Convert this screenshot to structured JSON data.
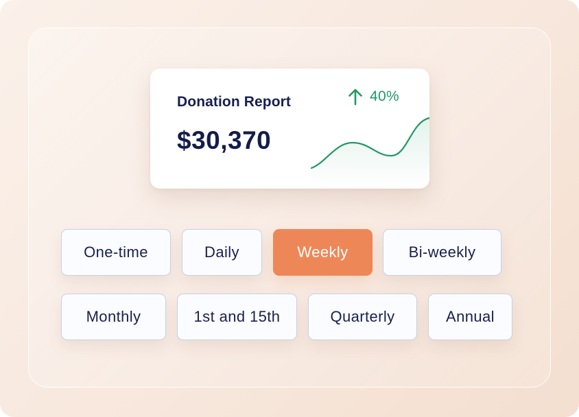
{
  "report": {
    "title": "Donation Report",
    "amount": "$30,370",
    "trend": {
      "icon": "arrow-up-icon",
      "value": "40%",
      "color": "#1e9a62"
    }
  },
  "frequency_options": [
    {
      "label": "One-time",
      "selected": false
    },
    {
      "label": "Daily",
      "selected": false
    },
    {
      "label": "Weekly",
      "selected": true
    },
    {
      "label": "Bi-weekly",
      "selected": false
    },
    {
      "label": "Monthly",
      "selected": false
    },
    {
      "label": "1st and 15th",
      "selected": false
    },
    {
      "label": "Quarterly",
      "selected": false
    },
    {
      "label": "Annual",
      "selected": false
    }
  ],
  "colors": {
    "accent": "#ee8757",
    "text_primary": "#17204d",
    "chip_border": "#c7d0e4",
    "trend_green": "#1e9a62"
  }
}
